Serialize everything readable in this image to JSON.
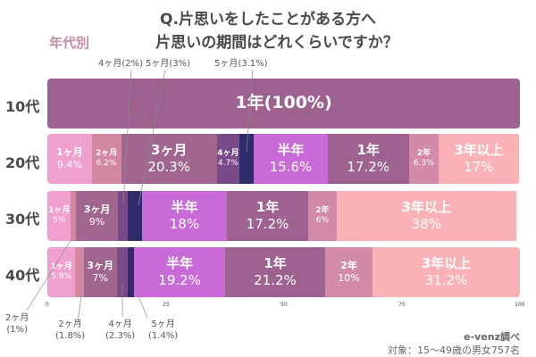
{
  "chart_data": {
    "type": "bar",
    "orientation": "horizontal-stacked-100",
    "title": "Q.片思いをしたことがある方へ",
    "subtitle": "片思いの期間はどれくらいですか？",
    "tag": "年代別",
    "xlim": [
      0,
      100
    ],
    "xticks": [
      "0",
      "25",
      "50",
      "75",
      "100"
    ],
    "categories": [
      "10代",
      "20代",
      "30代",
      "40代"
    ],
    "rows": [
      {
        "label": "10代",
        "segments": [
          {
            "name": "1年",
            "value": 100,
            "text": "1年(100%)"
          }
        ]
      },
      {
        "label": "20代",
        "segments": [
          {
            "name": "1ヶ月",
            "value": 9.4,
            "pct": "9.4%"
          },
          {
            "name": "2ヶ月",
            "value": 6.2,
            "pct": "6.2%"
          },
          {
            "name": "3ヶ月",
            "value": 20.3,
            "pct": "20.3%"
          },
          {
            "name": "4ヶ月",
            "value": 4.7,
            "pct": "4.7%"
          },
          {
            "name": "5ヶ月",
            "value": 3.1,
            "pct": ""
          },
          {
            "name": "半年",
            "value": 15.6,
            "pct": "15.6%"
          },
          {
            "name": "1年",
            "value": 17.2,
            "pct": "17.2%"
          },
          {
            "name": "2年",
            "value": 6.3,
            "pct": "6.3%"
          },
          {
            "name": "3年以上",
            "value": 17,
            "pct": "17%"
          }
        ]
      },
      {
        "label": "30代",
        "segments": [
          {
            "name": "1ヶ月",
            "value": 5,
            "pct": "5%"
          },
          {
            "name": "2ヶ月",
            "value": 1,
            "pct": ""
          },
          {
            "name": "3ヶ月",
            "value": 9,
            "pct": "9%"
          },
          {
            "name": "4ヶ月",
            "value": 2,
            "pct": ""
          },
          {
            "name": "5ヶ月",
            "value": 3,
            "pct": ""
          },
          {
            "name": "半年",
            "value": 18,
            "pct": "18%"
          },
          {
            "name": "1年",
            "value": 17.2,
            "pct": "17.2%"
          },
          {
            "name": "2年",
            "value": 6,
            "pct": "6%"
          },
          {
            "name": "3年以上",
            "value": 38,
            "pct": "38%"
          }
        ]
      },
      {
        "label": "40代",
        "segments": [
          {
            "name": "1ヶ月",
            "value": 5.9,
            "pct": "5.9%"
          },
          {
            "name": "2ヶ月",
            "value": 1.8,
            "pct": ""
          },
          {
            "name": "3ヶ月",
            "value": 7,
            "pct": "7%"
          },
          {
            "name": "4ヶ月",
            "value": 2.3,
            "pct": ""
          },
          {
            "name": "5ヶ月",
            "value": 1.4,
            "pct": ""
          },
          {
            "name": "半年",
            "value": 19.2,
            "pct": "19.2%"
          },
          {
            "name": "1年",
            "value": 21.2,
            "pct": "21.2%"
          },
          {
            "name": "2年",
            "value": 10,
            "pct": "10%"
          },
          {
            "name": "3年以上",
            "value": 31.2,
            "pct": "31.2%"
          }
        ]
      }
    ],
    "colors": {
      "1ヶ月": "#efa0cf",
      "2ヶ月": "#d4889f",
      "3ヶ月": "#a0668f",
      "4ヶ月": "#7a4a88",
      "5ヶ月": "#2f2c6c",
      "半年": "#c86ad8",
      "1年": "#9e6290",
      "2年": "#d38aa6",
      "3年以上": "#fbb2b6"
    },
    "callouts": [
      {
        "text": "4ヶ月(2%)",
        "row": "30代"
      },
      {
        "text": "5ヶ月(3%)",
        "row": "30代"
      },
      {
        "text": "5ヶ月(3.1%)",
        "row": "20代"
      },
      {
        "text": "2ヶ月\n(1%)",
        "row": "30代"
      },
      {
        "text": "2ヶ月\n(1.8%)",
        "row": "40代"
      },
      {
        "text": "4ヶ月\n(2.3%)",
        "row": "40代"
      },
      {
        "text": "5ヶ月\n(1.4%)",
        "row": "40代"
      }
    ]
  },
  "footer": {
    "source": "e-venz調べ",
    "target": "対象：15〜49歳の男女757名"
  }
}
